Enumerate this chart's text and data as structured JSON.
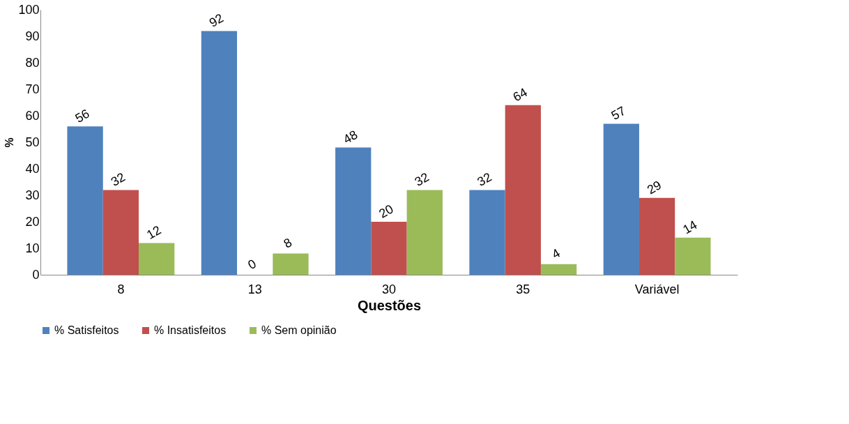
{
  "chart_data": {
    "type": "bar",
    "xlabel": "Questões",
    "ylabel": "%",
    "categories": [
      "8",
      "13",
      "30",
      "35",
      "Variável"
    ],
    "series": [
      {
        "name": "% Satisfeitos",
        "color": "#4f81bd",
        "values": [
          56,
          92,
          48,
          32,
          57
        ]
      },
      {
        "name": "% Insatisfeitos",
        "color": "#c0504d",
        "values": [
          32,
          0,
          20,
          64,
          29
        ]
      },
      {
        "name": "% Sem opinião",
        "color": "#9bbb59",
        "values": [
          12,
          8,
          32,
          4,
          14
        ]
      }
    ],
    "ylim": [
      0,
      100
    ],
    "yticks": [
      0,
      10,
      20,
      30,
      40,
      50,
      60,
      70,
      80,
      90,
      100
    ],
    "grid": false,
    "legend": "bottom",
    "data_labels": true
  }
}
